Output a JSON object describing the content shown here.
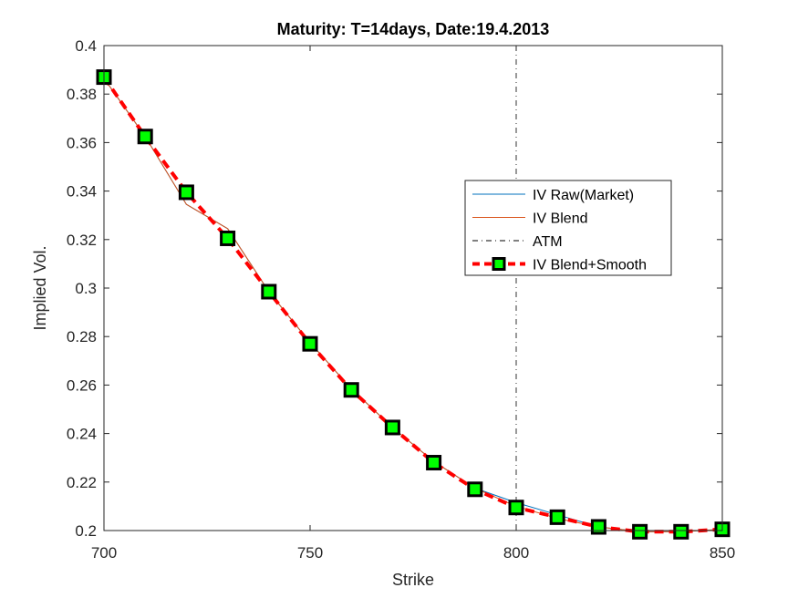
{
  "chart_data": {
    "type": "line",
    "title": "Maturity: T=14days, Date:19.4.2013",
    "xlabel": "Strike",
    "ylabel": "Implied Vol.",
    "xlim": [
      700,
      850
    ],
    "ylim": [
      0.2,
      0.4
    ],
    "xticks": [
      700,
      750,
      800,
      850
    ],
    "xtick_labels": [
      "700",
      "750",
      "800",
      "850"
    ],
    "yticks": [
      0.2,
      0.22,
      0.24,
      0.26,
      0.28,
      0.3,
      0.32,
      0.34,
      0.36,
      0.38,
      0.4
    ],
    "ytick_labels": [
      "0.2",
      "0.22",
      "0.24",
      "0.26",
      "0.28",
      "0.3",
      "0.32",
      "0.34",
      "0.36",
      "0.38",
      "0.4"
    ],
    "grid": false,
    "legend_position": "right",
    "x": [
      700,
      710,
      720,
      730,
      740,
      750,
      760,
      770,
      780,
      790,
      800,
      810,
      820,
      830,
      840,
      850
    ],
    "series": [
      {
        "name": "IV Raw(Market)",
        "color": "#0072BD",
        "style": "solid",
        "values": [
          0.3865,
          0.3625,
          0.3345,
          0.3245,
          0.2985,
          0.2775,
          0.2585,
          0.2425,
          0.2285,
          0.2175,
          0.2115,
          0.2065,
          0.2015,
          0.1995,
          0.1995,
          0.2005
        ]
      },
      {
        "name": "IV Blend",
        "color": "#D95319",
        "style": "solid",
        "values": [
          0.3865,
          0.3625,
          0.3345,
          0.3245,
          0.2985,
          0.2775,
          0.2585,
          0.2425,
          0.2285,
          0.2175,
          0.21,
          0.205,
          0.2015,
          0.1995,
          0.1995,
          0.2005
        ]
      },
      {
        "name": "ATM",
        "color": "#000000",
        "style": "dash-dot",
        "vertical_x": 800
      },
      {
        "name": "IV Blend+Smooth",
        "color": "#FF0000",
        "style": "dashed",
        "marker": "square",
        "marker_face": "#00FF00",
        "marker_edge": "#000000",
        "values": [
          0.387,
          0.3625,
          0.3395,
          0.3205,
          0.2985,
          0.277,
          0.258,
          0.2425,
          0.228,
          0.217,
          0.2095,
          0.2055,
          0.2015,
          0.1995,
          0.1995,
          0.2005
        ]
      }
    ]
  }
}
